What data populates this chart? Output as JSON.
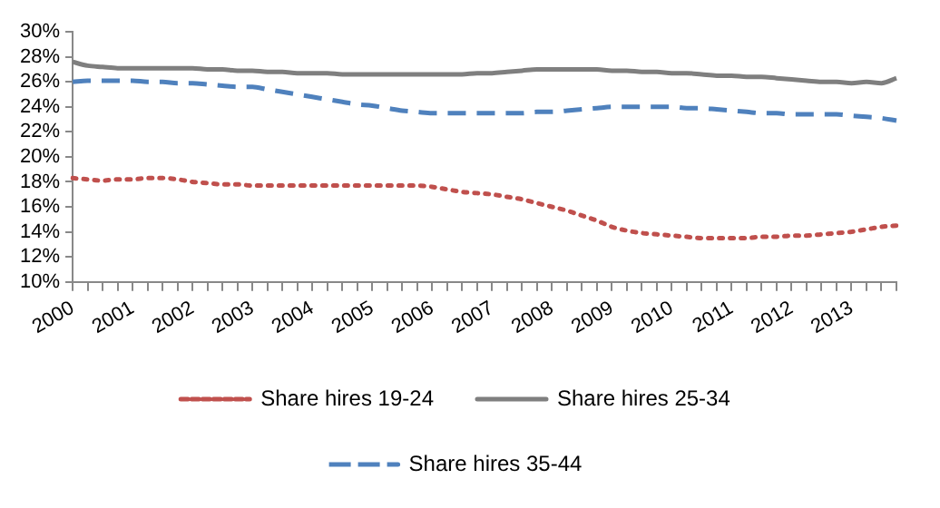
{
  "chart_data": {
    "type": "line",
    "categories": [
      "2000",
      null,
      null,
      null,
      "2001",
      null,
      null,
      null,
      "2002",
      null,
      null,
      null,
      "2003",
      null,
      null,
      null,
      "2004",
      null,
      null,
      null,
      "2005",
      null,
      null,
      null,
      "2006",
      null,
      null,
      null,
      "2007",
      null,
      null,
      null,
      "2008",
      null,
      null,
      null,
      "2009",
      null,
      null,
      null,
      "2010",
      null,
      null,
      null,
      "2011",
      null,
      null,
      null,
      "2012",
      null,
      null,
      null,
      "2013",
      null,
      null,
      null
    ],
    "series": [
      {
        "name": "Share hires 19-24",
        "color": "#c0504d",
        "line_style": "dotted",
        "values": [
          18.3,
          18.2,
          18.1,
          18.2,
          18.2,
          18.3,
          18.3,
          18.2,
          18.0,
          17.9,
          17.8,
          17.8,
          17.7,
          17.7,
          17.7,
          17.7,
          17.7,
          17.7,
          17.7,
          17.7,
          17.7,
          17.7,
          17.7,
          17.7,
          17.6,
          17.4,
          17.2,
          17.1,
          17.0,
          16.8,
          16.6,
          16.3,
          16.0,
          15.7,
          15.3,
          14.9,
          14.4,
          14.1,
          13.9,
          13.8,
          13.7,
          13.6,
          13.5,
          13.5,
          13.5,
          13.5,
          13.6,
          13.6,
          13.7,
          13.7,
          13.8,
          13.9,
          14.0,
          14.2,
          14.4,
          14.5
        ]
      },
      {
        "name": "Share hires 25-34",
        "color": "#7f7f7f",
        "line_style": "solid",
        "values": [
          27.6,
          27.3,
          27.2,
          27.1,
          27.1,
          27.1,
          27.1,
          27.1,
          27.1,
          27.0,
          27.0,
          26.9,
          26.9,
          26.8,
          26.8,
          26.7,
          26.7,
          26.7,
          26.6,
          26.6,
          26.6,
          26.6,
          26.6,
          26.6,
          26.6,
          26.6,
          26.6,
          26.7,
          26.7,
          26.8,
          26.9,
          27.0,
          27.0,
          27.0,
          27.0,
          27.0,
          26.9,
          26.9,
          26.8,
          26.8,
          26.7,
          26.7,
          26.6,
          26.5,
          26.5,
          26.4,
          26.4,
          26.3,
          26.2,
          26.1,
          26.0,
          26.0,
          25.9,
          26.0,
          25.9,
          26.3
        ]
      },
      {
        "name": "Share hires 35-44",
        "color": "#4f81bd",
        "line_style": "dashed",
        "values": [
          26.0,
          26.1,
          26.1,
          26.1,
          26.1,
          26.0,
          26.0,
          25.9,
          25.9,
          25.8,
          25.7,
          25.6,
          25.6,
          25.4,
          25.2,
          25.0,
          24.8,
          24.6,
          24.4,
          24.2,
          24.1,
          23.9,
          23.7,
          23.6,
          23.5,
          23.5,
          23.5,
          23.5,
          23.5,
          23.5,
          23.5,
          23.6,
          23.6,
          23.7,
          23.8,
          23.9,
          24.0,
          24.0,
          24.0,
          24.0,
          24.0,
          23.9,
          23.9,
          23.8,
          23.7,
          23.6,
          23.5,
          23.5,
          23.4,
          23.4,
          23.4,
          23.4,
          23.3,
          23.2,
          23.1,
          22.9
        ]
      }
    ],
    "ylim": [
      10,
      30
    ],
    "yticks": [
      {
        "value": 10,
        "label": "10%"
      },
      {
        "value": 12,
        "label": "12%"
      },
      {
        "value": 14,
        "label": "14%"
      },
      {
        "value": 16,
        "label": "16%"
      },
      {
        "value": 18,
        "label": "18%"
      },
      {
        "value": 20,
        "label": "20%"
      },
      {
        "value": 22,
        "label": "22%"
      },
      {
        "value": 24,
        "label": "24%"
      },
      {
        "value": 26,
        "label": "26%"
      },
      {
        "value": 28,
        "label": "28%"
      },
      {
        "value": 30,
        "label": "30%"
      }
    ],
    "grid": false,
    "legend": "bottom",
    "marker": "none"
  }
}
